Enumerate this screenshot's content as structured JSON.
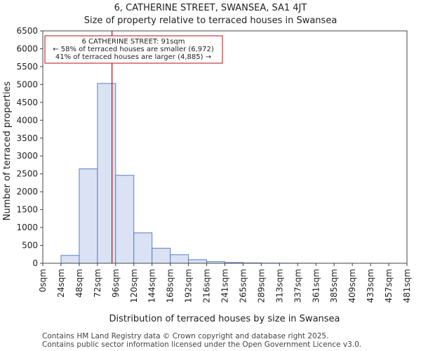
{
  "header": {
    "title": "6, CATHERINE STREET, SWANSEA, SA1 4JT",
    "subtitle": "Size of property relative to terraced houses in Swansea"
  },
  "footer": {
    "line1": "Contains HM Land Registry data © Crown copyright and database right 2025.",
    "line2": "Contains public sector information licensed under the Open Government Licence v3.0."
  },
  "colors": {
    "bar_fill": "#dae2f4",
    "bar_stroke": "#5b7ec9",
    "marker": "#b01010"
  },
  "chart_data": {
    "type": "bar",
    "xlabel": "Distribution of terraced houses by size in Swansea",
    "ylabel": "Number of terraced properties",
    "ylim": [
      0,
      6500
    ],
    "yticks": [
      0,
      500,
      1000,
      1500,
      2000,
      2500,
      3000,
      3500,
      4000,
      4500,
      5000,
      5500,
      6000,
      6500
    ],
    "xtick_labels": [
      "0sqm",
      "24sqm",
      "48sqm",
      "72sqm",
      "96sqm",
      "120sqm",
      "144sqm",
      "168sqm",
      "192sqm",
      "216sqm",
      "241sqm",
      "265sqm",
      "289sqm",
      "313sqm",
      "337sqm",
      "361sqm",
      "385sqm",
      "409sqm",
      "433sqm",
      "457sqm",
      "481sqm"
    ],
    "values": [
      0,
      220,
      2640,
      5030,
      2460,
      850,
      420,
      240,
      100,
      45,
      20,
      10,
      5,
      3,
      2,
      1,
      1,
      0,
      0,
      0
    ],
    "marker": {
      "value_sqm": 91,
      "bin_position": 3.8,
      "label_line1": "6 CATHERINE STREET: 91sqm",
      "label_line2": "← 58% of terraced houses are smaller (6,972)",
      "label_line3": "41% of terraced houses are larger (4,885) →"
    },
    "grid": false
  }
}
